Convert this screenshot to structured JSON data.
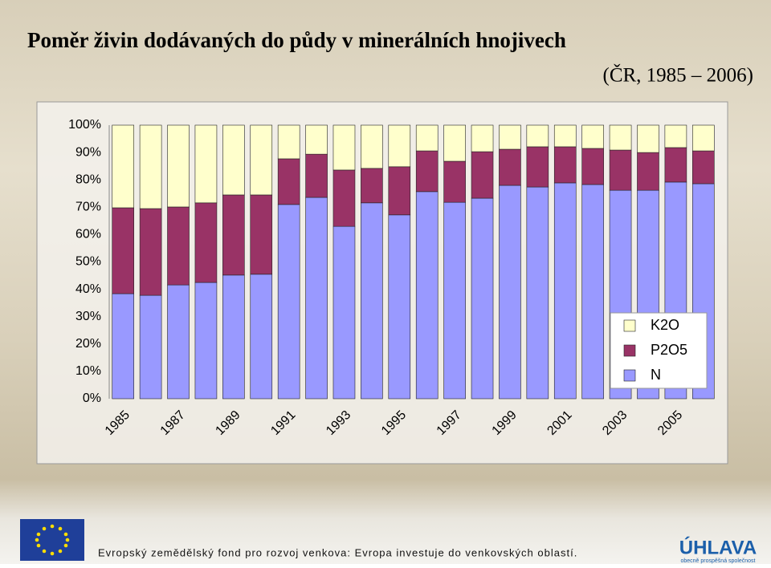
{
  "chart_data": {
    "type": "stacked-bar",
    "title": "Poměr živin dodávaných do půdy v minerálních hnojivech",
    "subtitle": "(ČR, 1985 – 2006)",
    "categories": [
      "1985",
      null,
      "1987",
      null,
      "1989",
      null,
      "1991",
      null,
      "1993",
      null,
      "1995",
      null,
      "1997",
      null,
      "1999",
      null,
      "2001",
      null,
      "2003",
      null,
      "2005",
      null
    ],
    "series": [
      {
        "name": "N",
        "color": "#9999ff",
        "values": [
          38.4,
          37.8,
          41.6,
          42.5,
          45.2,
          45.5,
          71.0,
          73.6,
          63.0,
          71.6,
          67.2,
          75.7,
          71.8,
          73.3,
          78.0,
          77.4,
          78.9,
          78.3,
          76.2,
          76.2,
          79.2,
          78.6
        ]
      },
      {
        "name": "P2O5",
        "color": "#993366",
        "values": [
          31.4,
          31.7,
          28.5,
          29.1,
          29.3,
          29.0,
          16.7,
          15.8,
          20.6,
          12.6,
          17.6,
          14.9,
          15.0,
          17.0,
          13.2,
          14.7,
          13.2,
          13.2,
          14.7,
          13.8,
          12.6,
          12.0
        ]
      },
      {
        "name": "K2O",
        "color": "#ffffcc",
        "values": [
          30.2,
          30.5,
          29.9,
          28.4,
          25.5,
          25.5,
          12.3,
          10.6,
          16.4,
          15.8,
          15.2,
          9.4,
          13.2,
          9.7,
          8.8,
          7.9,
          7.9,
          8.5,
          9.1,
          10.0,
          8.2,
          9.4
        ]
      }
    ],
    "ylim": [
      0,
      100
    ],
    "yticks": [
      {
        "value": 0,
        "label": "0%"
      },
      {
        "value": 10,
        "label": "10%"
      },
      {
        "value": 20,
        "label": "20%"
      },
      {
        "value": 30,
        "label": "30%"
      },
      {
        "value": 40,
        "label": "40%"
      },
      {
        "value": 50,
        "label": "50%"
      },
      {
        "value": 60,
        "label": "60%"
      },
      {
        "value": 70,
        "label": "70%"
      },
      {
        "value": 80,
        "label": "80%"
      },
      {
        "value": 90,
        "label": "90%"
      },
      {
        "value": 100,
        "label": "100%"
      }
    ],
    "grid": false,
    "legend": "right"
  },
  "footer": {
    "text": "Evropský zemědělský fond pro rozvoj venkova: Evropa investuje do venkovských oblastí.",
    "logo": "ÚHLAVA",
    "logo_subtitle": "obecně prospěšná společnost"
  }
}
